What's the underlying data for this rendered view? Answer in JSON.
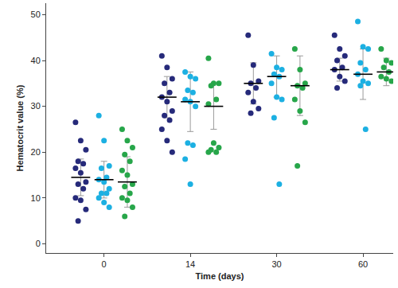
{
  "chart_data": {
    "type": "strip",
    "x_label": "Time (days)",
    "y_label": "Hematocrit value (%)",
    "categories": [
      "0",
      "14",
      "30",
      "60"
    ],
    "ylim": [
      -2,
      52.5
    ],
    "yticks": [
      0,
      10,
      20,
      30,
      40,
      50
    ],
    "grid": false,
    "series": [
      {
        "color": "#262a7a",
        "values": [
          [
            26.5,
            22.5,
            20.5,
            18,
            17.5,
            16.5,
            15.5,
            13.5,
            13,
            12,
            10,
            9.5,
            7.5,
            5
          ],
          [
            41,
            38.5,
            36,
            35,
            33,
            32,
            31,
            29,
            28,
            27,
            25,
            22.5,
            20
          ],
          [
            45.5,
            39,
            35.5,
            35,
            34,
            33,
            31,
            29.5,
            28.5
          ],
          [
            45.5,
            42.5,
            41,
            40,
            38.5,
            38,
            36.5,
            35.5,
            34
          ]
        ],
        "mean": [
          14.5,
          32,
          35,
          38
        ],
        "sd": [
          4,
          4.5,
          4.5,
          2.5
        ]
      },
      {
        "color": "#1cb0e2",
        "values": [
          [
            28,
            22.5,
            17,
            16.5,
            14.5,
            14,
            13.5,
            12,
            11,
            11,
            10,
            9,
            8
          ],
          [
            37.5,
            36.5,
            36,
            33.5,
            33,
            31.5,
            31,
            30,
            22,
            21.5,
            18.5,
            13
          ],
          [
            41.5,
            38.5,
            38,
            37,
            36.5,
            35,
            32,
            31.5,
            27.5,
            13
          ],
          [
            48.5,
            43,
            42.5,
            39.5,
            38,
            37,
            35.5,
            35,
            34.5,
            25
          ]
        ],
        "mean": [
          14,
          31,
          36.5,
          37
        ],
        "sd": [
          4,
          6.5,
          4.5,
          5.5
        ]
      },
      {
        "color": "#27a64a",
        "values": [
          [
            25,
            22.5,
            21,
            19.5,
            18,
            16,
            15,
            13,
            12.5,
            11,
            10,
            9.5,
            8,
            6
          ],
          [
            40.5,
            35,
            35,
            34.5,
            31.5,
            30.5,
            22,
            21,
            20.5,
            20,
            20
          ],
          [
            42.5,
            38,
            35,
            34.5,
            34,
            31.5,
            29,
            26.5,
            17
          ],
          [
            42.5,
            40,
            39.5,
            38.5,
            37.5,
            36.5,
            36,
            35.5
          ]
        ],
        "mean": [
          13.5,
          30,
          34.5,
          37.5
        ],
        "sd": [
          5.5,
          5,
          6.5,
          3
        ]
      }
    ]
  }
}
